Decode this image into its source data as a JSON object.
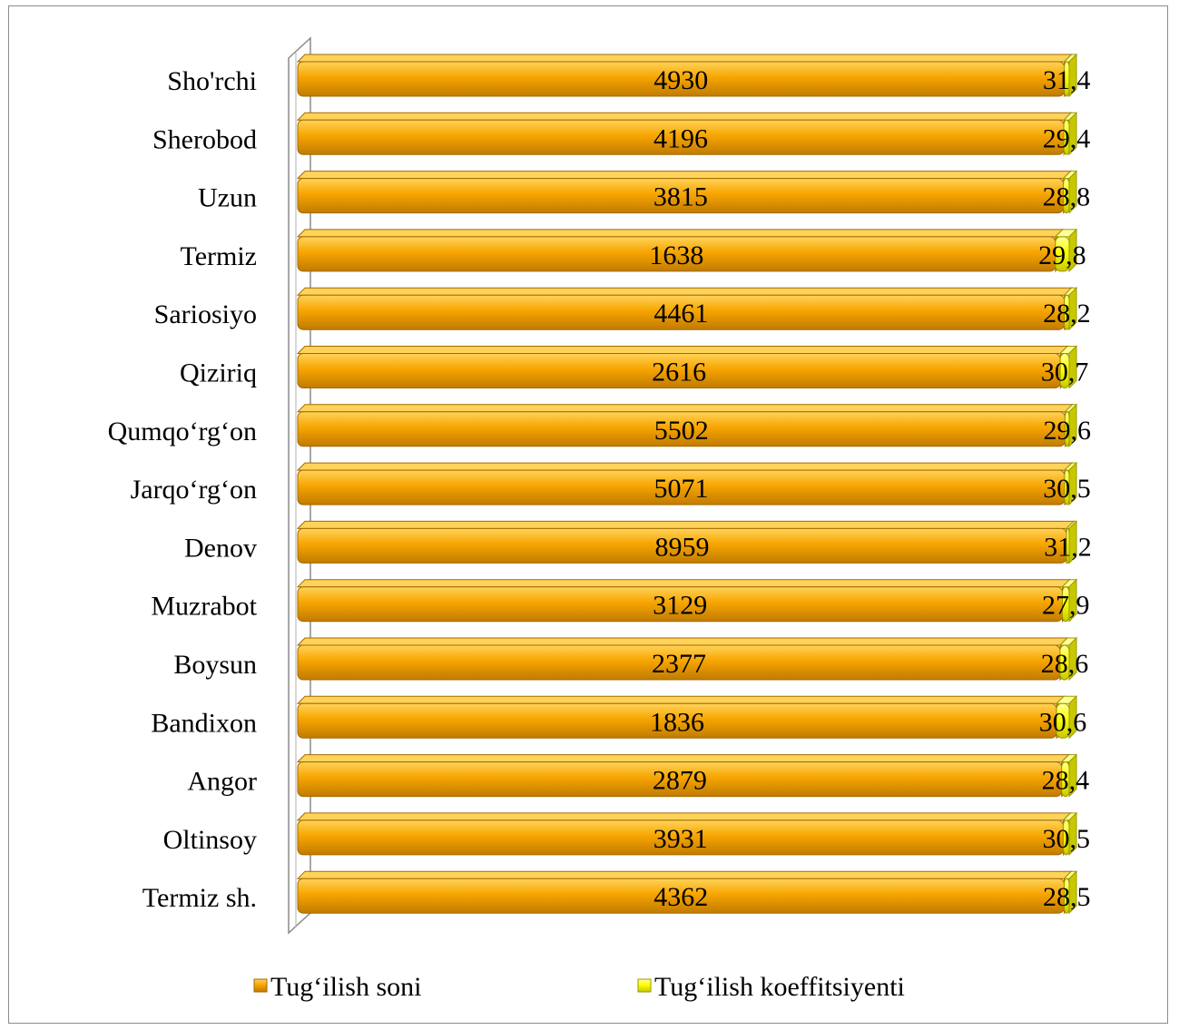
{
  "chart_data": {
    "type": "bar",
    "orientation": "horizontal",
    "stacked": "percent",
    "categories": [
      "Sho'rchi",
      "Sherobod",
      "Uzun",
      "Termiz",
      "Sariosiyo",
      "Qiziriq",
      "Qumqo‘rg‘on",
      "Jarqo‘rg‘on",
      "Denov",
      "Muzrabot",
      "Boysun",
      "Bandixon",
      "Angor",
      "Oltinsoy",
      "Termiz sh."
    ],
    "series": [
      {
        "name": "Tug‘ilish soni",
        "values": [
          4930,
          4196,
          3815,
          1638,
          4461,
          2616,
          5502,
          5071,
          8959,
          3129,
          2377,
          1836,
          2879,
          3931,
          4362
        ],
        "labels": [
          "4930",
          "4196",
          "3815",
          "1638",
          "4461",
          "2616",
          "5502",
          "5071",
          "8959",
          "3129",
          "2377",
          "1836",
          "2879",
          "3931",
          "4362"
        ]
      },
      {
        "name": "Tug‘ilish koeffitsiyenti",
        "values": [
          31.4,
          29.4,
          28.8,
          29.8,
          28.2,
          30.7,
          29.6,
          30.5,
          31.2,
          27.9,
          28.6,
          30.6,
          28.4,
          30.5,
          28.5
        ],
        "labels": [
          "31,4",
          "29,4",
          "28,8",
          "29,8",
          "28,2",
          "30,7",
          "29,6",
          "30,5",
          "31,2",
          "27,9",
          "28,6",
          "30,6",
          "28,4",
          "30,5",
          "28,5"
        ]
      }
    ],
    "legend_position": "bottom",
    "grid": false
  },
  "colors": {
    "series1": "#f7a500",
    "series1_light": "#ffd35a",
    "series1_dark": "#c07b00",
    "series2": "#ffff00",
    "series2_light": "#ffff9a",
    "series2_dark": "#c8c800",
    "bar_edge": "#a36a00",
    "bar_edge2": "#9a9a00",
    "axis_wall": "#d9d9d9"
  }
}
